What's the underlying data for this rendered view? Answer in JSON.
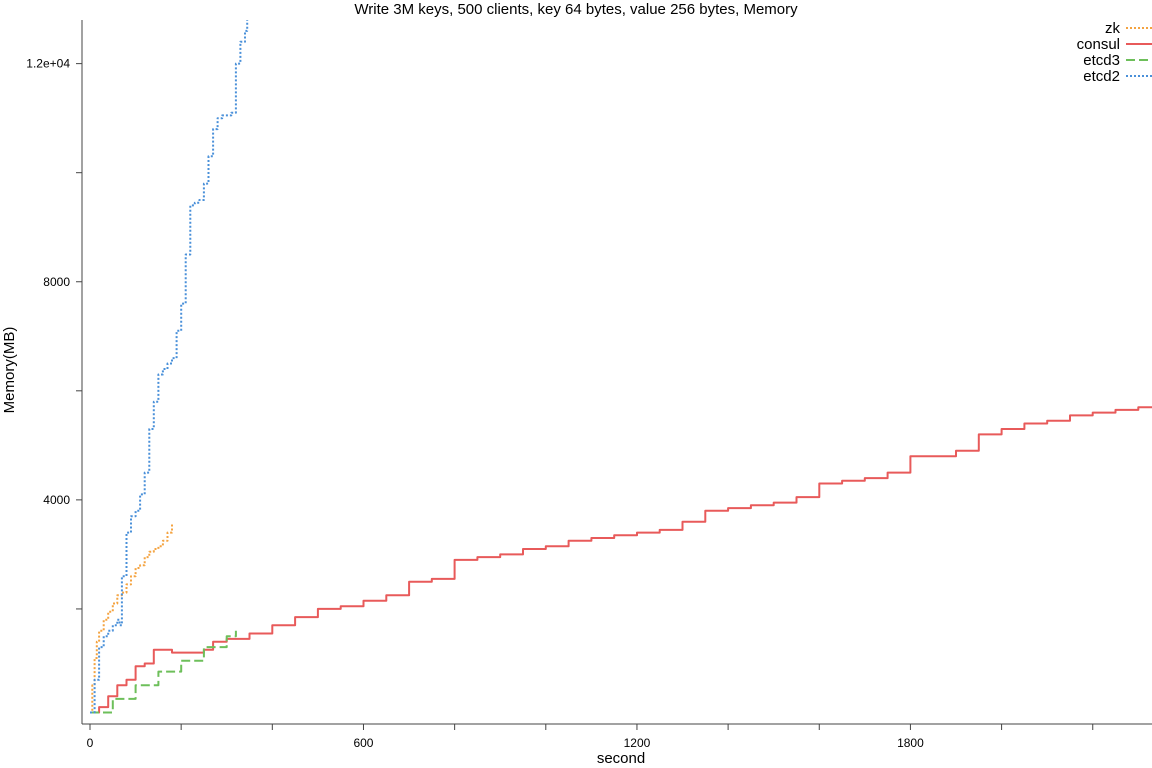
{
  "chart_data": {
    "type": "line",
    "title": "Write 3M keys, 500 clients, key 64 bytes, value 256 bytes, Memory",
    "xlabel": "second",
    "ylabel": "Memory(MB)",
    "xlim": [
      0,
      2330
    ],
    "ylim": [
      0,
      12800
    ],
    "x_ticks": [
      0,
      600,
      1200,
      1800
    ],
    "x_tick_labels": [
      "0",
      "600",
      "1200",
      "1800"
    ],
    "x_minor_ticks": [
      200,
      400,
      800,
      1000,
      1400,
      1600,
      2000,
      2200
    ],
    "y_ticks": [
      4000,
      8000,
      12000
    ],
    "y_tick_labels": [
      "4000",
      "8000",
      "1.2e+04"
    ],
    "y_minor_ticks": [
      2000,
      6000,
      10000
    ],
    "grid": false,
    "legend_position": "top-right",
    "series": [
      {
        "name": "zk",
        "color": "#f4a340",
        "dash": "dotted",
        "x": [
          0,
          5,
          10,
          15,
          20,
          30,
          40,
          50,
          60,
          70,
          80,
          90,
          100,
          110,
          120,
          130,
          140,
          150,
          160,
          170,
          180
        ],
        "y": [
          100,
          600,
          1100,
          1400,
          1600,
          1800,
          1950,
          2100,
          2250,
          2300,
          2450,
          2600,
          2750,
          2800,
          2950,
          3050,
          3100,
          3150,
          3250,
          3400,
          3550
        ]
      },
      {
        "name": "consul",
        "color": "#e85a5a",
        "dash": "solid",
        "x": [
          0,
          20,
          40,
          60,
          80,
          100,
          120,
          140,
          160,
          180,
          200,
          250,
          270,
          300,
          350,
          400,
          450,
          500,
          550,
          600,
          650,
          700,
          750,
          800,
          850,
          900,
          950,
          1000,
          1050,
          1100,
          1150,
          1200,
          1250,
          1300,
          1350,
          1400,
          1450,
          1500,
          1550,
          1600,
          1650,
          1700,
          1750,
          1800,
          1850,
          1900,
          1950,
          2000,
          2050,
          2100,
          2150,
          2200,
          2250,
          2300,
          2330
        ],
        "y": [
          100,
          200,
          400,
          600,
          700,
          950,
          1000,
          1250,
          1250,
          1200,
          1200,
          1250,
          1400,
          1450,
          1550,
          1700,
          1850,
          2000,
          2050,
          2150,
          2250,
          2500,
          2550,
          2900,
          2950,
          3000,
          3100,
          3150,
          3250,
          3300,
          3350,
          3400,
          3450,
          3600,
          3800,
          3850,
          3900,
          3950,
          4050,
          4300,
          4350,
          4400,
          4500,
          4800,
          4800,
          4900,
          5200,
          5300,
          5400,
          5450,
          5550,
          5600,
          5650,
          5700,
          5700
        ]
      },
      {
        "name": "etcd3",
        "color": "#6dbf5a",
        "dash": "dashed",
        "x": [
          0,
          50,
          100,
          150,
          200,
          250,
          300,
          320
        ],
        "y": [
          100,
          350,
          600,
          850,
          1050,
          1300,
          1500,
          1600
        ]
      },
      {
        "name": "etcd2",
        "color": "#4a90d9",
        "dash": "dotted",
        "x": [
          0,
          10,
          20,
          30,
          40,
          50,
          60,
          65,
          70,
          80,
          90,
          100,
          110,
          120,
          130,
          140,
          150,
          160,
          170,
          180,
          190,
          200,
          210,
          220,
          230,
          240,
          250,
          260,
          270,
          280,
          290,
          300,
          310,
          320,
          330,
          340,
          345
        ],
        "y": [
          100,
          700,
          1300,
          1500,
          1600,
          1700,
          1800,
          1700,
          2600,
          3400,
          3700,
          3800,
          4100,
          4500,
          5300,
          5800,
          6300,
          6400,
          6500,
          6600,
          7100,
          7600,
          8500,
          9400,
          9450,
          9500,
          9800,
          10300,
          10800,
          11000,
          11050,
          11050,
          11100,
          12000,
          12400,
          12600,
          12800
        ]
      }
    ]
  }
}
